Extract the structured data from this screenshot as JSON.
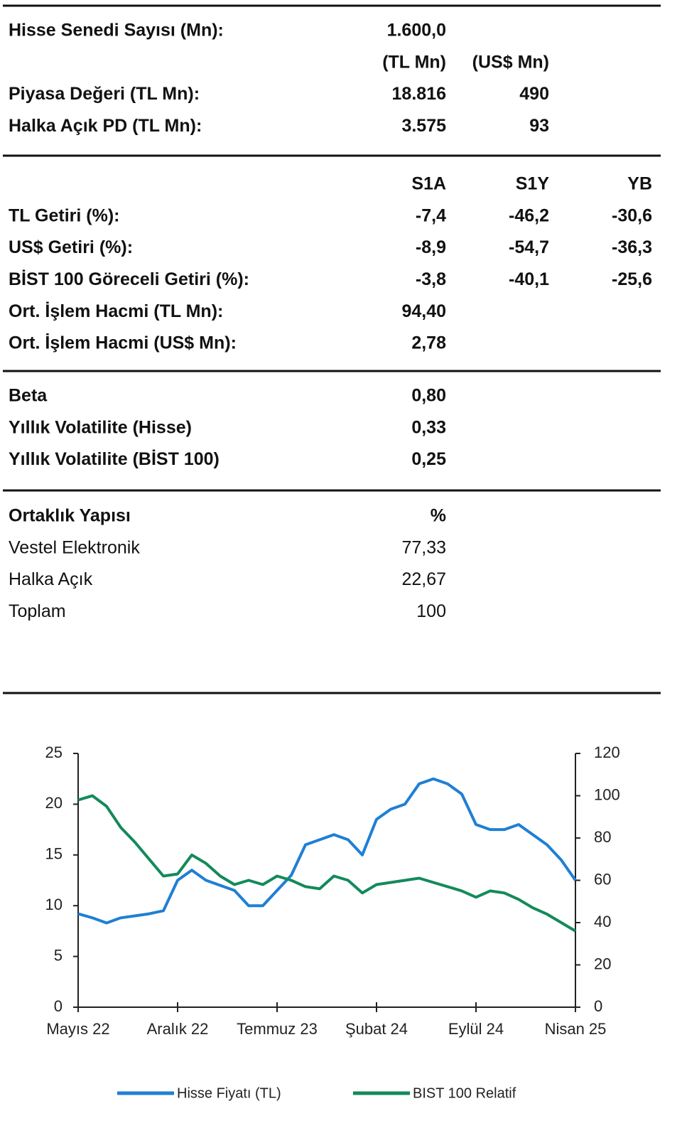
{
  "sections": [
    {
      "rows": [
        {
          "label": "Hisse Senedi Sayısı (Mn):",
          "values": [
            "1.600,0"
          ]
        },
        {
          "values": [
            "(TL Mn)",
            "(US$ Mn)"
          ]
        },
        {
          "label": "Piyasa Değeri (TL Mn):",
          "values": [
            "18.816",
            "490"
          ]
        },
        {
          "label": "Halka Açık PD (TL Mn):",
          "values": [
            "3.575",
            "93"
          ]
        }
      ]
    },
    {
      "rows": [
        {
          "values": [
            "S1A",
            "S1Y",
            "YB"
          ]
        },
        {
          "label": "TL Getiri (%):",
          "values": [
            "-7,4",
            "-46,2",
            "-30,6"
          ]
        },
        {
          "label": "US$ Getiri (%):",
          "values": [
            "-8,9",
            "-54,7",
            "-36,3"
          ]
        },
        {
          "label": "BİST 100 Göreceli Getiri (%):",
          "values": [
            "-3,8",
            "-40,1",
            "-25,6"
          ]
        },
        {
          "label": "Ort. İşlem Hacmi (TL Mn):",
          "values": [
            "94,40"
          ]
        },
        {
          "label": "Ort. İşlem Hacmi (US$ Mn):",
          "values": [
            "2,78"
          ]
        }
      ]
    },
    {
      "rows": [
        {
          "label": "Beta",
          "values": [
            "0,80"
          ]
        },
        {
          "label": "Yıllık Volatilite (Hisse)",
          "values": [
            "0,33"
          ]
        },
        {
          "label": "Yıllık Volatilite (BİST 100)",
          "values": [
            "0,25"
          ]
        }
      ]
    },
    {
      "rows": [
        {
          "label": "Ortaklık Yapısı",
          "values": [
            "%"
          ]
        },
        {
          "label": "Vestel Elektronik",
          "values": [
            "77,33"
          ]
        },
        {
          "label": "Halka Açık",
          "values": [
            "22,67"
          ]
        },
        {
          "label": "Toplam",
          "values": [
            "100"
          ]
        }
      ]
    }
  ],
  "chart_data": {
    "type": "line",
    "categories": [
      "Mayıs 22",
      null,
      null,
      null,
      null,
      null,
      null,
      "Aralık 22",
      null,
      null,
      null,
      null,
      null,
      null,
      "Temmuz 23",
      null,
      null,
      null,
      null,
      null,
      null,
      "Şubat 24",
      null,
      null,
      null,
      null,
      null,
      null,
      "Eylül 24",
      null,
      null,
      null,
      null,
      null,
      null,
      "Nisan 25"
    ],
    "series": [
      {
        "name": "Hisse Fiyatı (TL)",
        "color": "#1f7fd4",
        "values": [
          9.2,
          8.8,
          8.3,
          8.8,
          9.0,
          9.2,
          9.5,
          12.5,
          13.5,
          12.5,
          12.0,
          11.5,
          10.0,
          10.0,
          11.5,
          13.0,
          16.0,
          16.5,
          17.0,
          16.5,
          15.0,
          18.5,
          19.5,
          20.0,
          22.0,
          22.5,
          22.0,
          21.0,
          18.0,
          17.5,
          17.5,
          18.0,
          17.0,
          16.0,
          14.5,
          12.5
        ]
      },
      {
        "name": "BIST 100 Relatif",
        "color": "#138a5a",
        "axis": "y2",
        "values": [
          98,
          100,
          95,
          85,
          78,
          70,
          62,
          63,
          72,
          68,
          62,
          58,
          60,
          58,
          62,
          60,
          57,
          56,
          62,
          60,
          54,
          58,
          59,
          60,
          61,
          59,
          57,
          55,
          52,
          55,
          54,
          51,
          47,
          44,
          40,
          36
        ]
      }
    ],
    "ylim": [
      0,
      25
    ],
    "yticks": [
      0,
      5,
      10,
      15,
      20,
      25
    ],
    "y2lim": [
      0,
      120
    ],
    "y2ticks": [
      0,
      20,
      40,
      60,
      80,
      100,
      120
    ],
    "legend": "bottom"
  }
}
